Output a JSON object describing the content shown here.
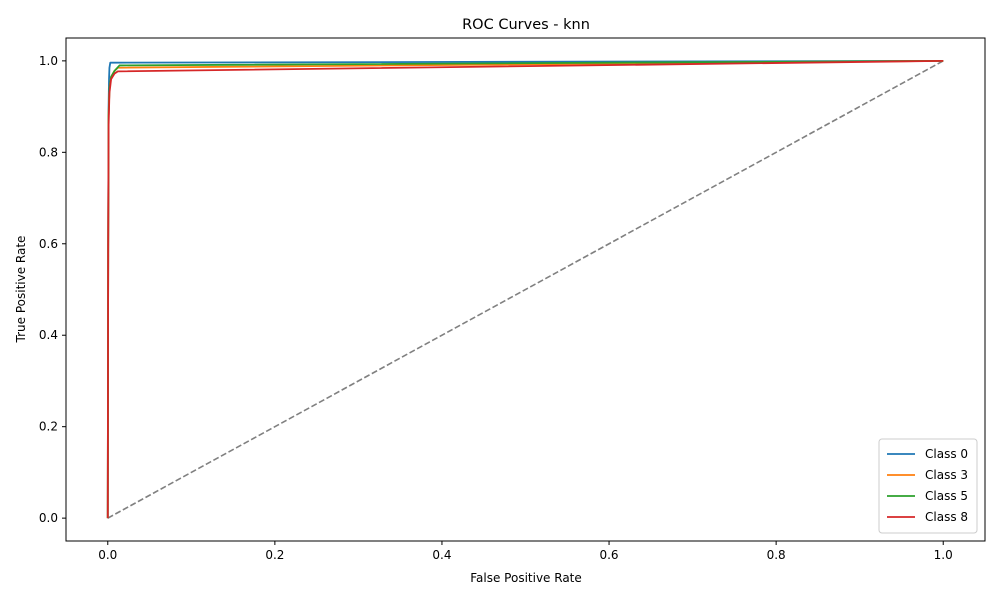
{
  "chart_data": {
    "type": "line",
    "title": "ROC Curves - knn",
    "xlabel": "False Positive Rate",
    "ylabel": "True Positive Rate",
    "xlim": [
      -0.05,
      1.05
    ],
    "ylim": [
      -0.05,
      1.05
    ],
    "xticks": [
      0.0,
      0.2,
      0.4,
      0.6,
      0.8,
      1.0
    ],
    "yticks": [
      0.0,
      0.2,
      0.4,
      0.6,
      0.8,
      1.0
    ],
    "xtick_labels": [
      "0.0",
      "0.2",
      "0.4",
      "0.6",
      "0.8",
      "1.0"
    ],
    "ytick_labels": [
      "0.0",
      "0.2",
      "0.4",
      "0.6",
      "0.8",
      "1.0"
    ],
    "grid": false,
    "legend_position": "lower-right",
    "series": [
      {
        "name": "Class 0",
        "color": "#1f77b4",
        "x": [
          0.0,
          0.0005,
          0.001,
          0.0015,
          0.002,
          0.003,
          1.0
        ],
        "y": [
          0.0,
          0.6,
          0.9,
          0.96,
          0.985,
          0.996,
          1.0
        ]
      },
      {
        "name": "Class 3",
        "color": "#ff7f0e",
        "x": [
          0.0,
          0.0005,
          0.001,
          0.002,
          0.004,
          0.008,
          0.012,
          1.0
        ],
        "y": [
          0.0,
          0.6,
          0.88,
          0.94,
          0.965,
          0.978,
          0.985,
          1.0
        ]
      },
      {
        "name": "Class 5",
        "color": "#2ca02c",
        "x": [
          0.0,
          0.0005,
          0.001,
          0.002,
          0.004,
          0.008,
          0.014,
          1.0
        ],
        "y": [
          0.0,
          0.6,
          0.88,
          0.94,
          0.965,
          0.978,
          0.99,
          1.0
        ]
      },
      {
        "name": "Class 8",
        "color": "#d62728",
        "x": [
          0.0,
          0.0005,
          0.001,
          0.002,
          0.004,
          0.008,
          0.012,
          1.0
        ],
        "y": [
          0.0,
          0.6,
          0.86,
          0.93,
          0.96,
          0.972,
          0.977,
          1.0
        ]
      }
    ],
    "reference_line": {
      "color": "#808080",
      "x": [
        0.0,
        1.0
      ],
      "y": [
        0.0,
        1.0
      ]
    }
  }
}
